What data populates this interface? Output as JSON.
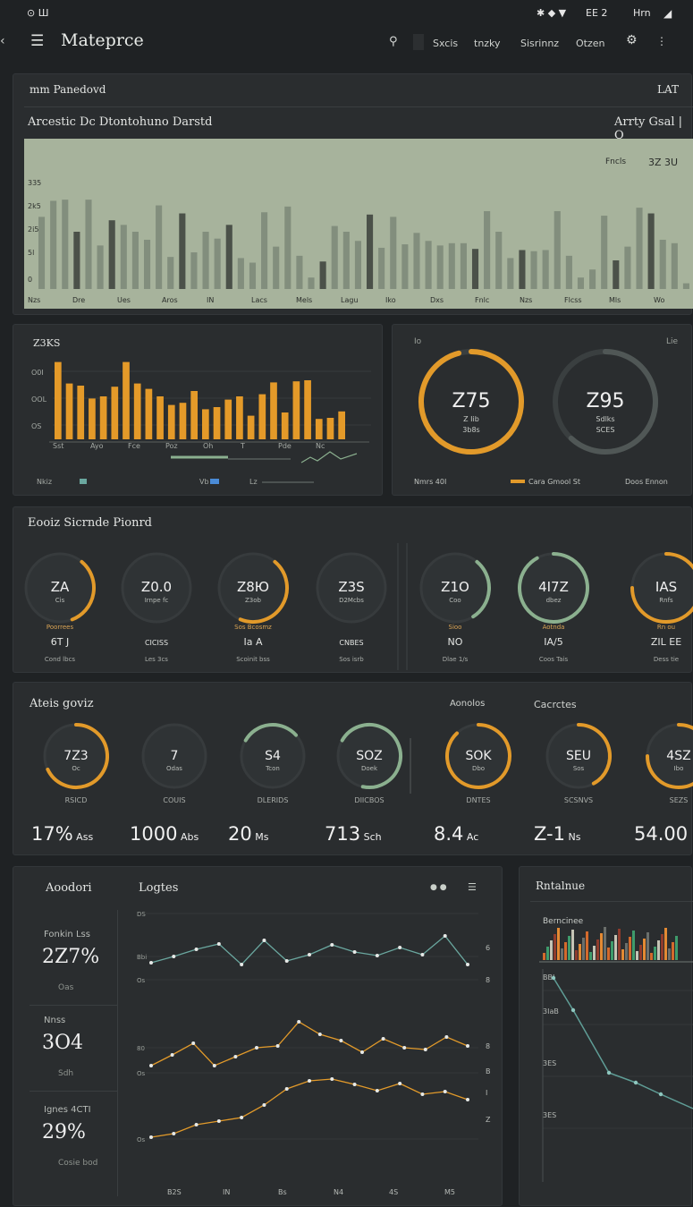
{
  "status": {
    "left": "⊙ Ш",
    "right": "ЕЕ 2",
    "time": "Hrn"
  },
  "appbar": {
    "title": "Mateprce",
    "nav": [
      "Sxcis",
      "tnzky",
      "Sisrinnz",
      "Otzen"
    ]
  },
  "panel1": {
    "header": "mm Panedovd",
    "header_right": "LAT",
    "title": "Arcestic Dc Dtontohuno Darstd",
    "title_right": "Arrty Gsal | O",
    "inner_label": "Fncls",
    "inner_value": "3Z 3U",
    "chart_data": {
      "type": "bar",
      "yticks": [
        "335",
        "2k5",
        "2i5",
        "5l",
        "0"
      ],
      "xticks": [
        "Nzs",
        "Dre",
        "Ues",
        "Aros",
        "IN",
        "Lacs",
        "Mels",
        "Lagu",
        "Iko",
        "Dxs",
        "Fnlc",
        "Nzs",
        "Flcss",
        "Mls",
        "Wo"
      ],
      "values": [
        63,
        77,
        78,
        50,
        78,
        38,
        60,
        56,
        50,
        43,
        73,
        28,
        66,
        32,
        50,
        44,
        56,
        27,
        23,
        67,
        37,
        72,
        29,
        10,
        24,
        55,
        50,
        42,
        65,
        36,
        63,
        39,
        49,
        42,
        38,
        40,
        40,
        35,
        68,
        50,
        27,
        34,
        33,
        34,
        68,
        29,
        10,
        17,
        64,
        25,
        37,
        71,
        66,
        43,
        40,
        5
      ],
      "dark": [
        3,
        6,
        12,
        16,
        24,
        28,
        37,
        41,
        49,
        52,
        58,
        62
      ]
    }
  },
  "panel2": {
    "title": "Z3KS",
    "yticks": [
      "O0I",
      "OOL",
      "OS"
    ],
    "xticks": [
      "Sst",
      "Ayo",
      "Fce",
      "Poz",
      "Oh",
      "T",
      "Pde",
      "Nc"
    ],
    "values": [
      72,
      52,
      50,
      38,
      40,
      49,
      72,
      52,
      47,
      40,
      32,
      34,
      45,
      28,
      30,
      37,
      40,
      22,
      42,
      53,
      25,
      54,
      55,
      19,
      20,
      26
    ],
    "legend": [
      "Nkiz",
      "Vb",
      "Lz"
    ]
  },
  "panel3": {
    "corner_left": "Io",
    "corner_right": "Lie",
    "gauges": [
      {
        "value": "Z75",
        "sub1": "Z Iib",
        "sub2": "3b8s",
        "pct": 0.96,
        "color": "#e29a2a"
      },
      {
        "value": "Z95",
        "sub1": "Sdlks",
        "sub2": "SCES",
        "pct": 0.62,
        "color": "#505756"
      }
    ],
    "legend": [
      "Nmrs 40I",
      "Cara Gmool St",
      "Doos Ennon"
    ]
  },
  "section1": {
    "title": "Eooiz Sicrnde Pionrd",
    "gauges": [
      {
        "value": "ZA",
        "sub": "Cis",
        "top": "Poorrees",
        "mid": "6T J",
        "bottom": "Cond lbcs",
        "pct": 0.33,
        "color": "#e29a2a"
      },
      {
        "value": "Z0.0",
        "sub": "Irnpe fc",
        "top": "",
        "mid": "CICISS",
        "bottom": "Les 3cs",
        "pct": 0,
        "color": "#e29a2a"
      },
      {
        "value": "Z8Ю",
        "sub": "Z3ob",
        "top": "Sos Bcosmz",
        "mid": "Ia A",
        "bottom": "Scoinit bss",
        "pct": 0.45,
        "color": "#e29a2a"
      },
      {
        "value": "Z3S",
        "sub": "D2Mcbs",
        "top": "",
        "mid": "CNBES",
        "bottom": "Sos isrb",
        "pct": 0,
        "color": "#e29a2a"
      },
      {
        "value": "Z1O",
        "sub": "Coo",
        "top": "Sioo",
        "mid": "NO",
        "bottom": "Dlae 1/s",
        "pct": 0.3,
        "color": "#8bb08f"
      },
      {
        "value": "4I7Z",
        "sub": "dbez",
        "top": "Aotnda",
        "mid": "IA/5",
        "bottom": "Coos Tais",
        "pct": 0.92,
        "color": "#8bb08f"
      },
      {
        "value": "IAS",
        "sub": "Rnfs",
        "top": "Rn ou",
        "mid": "ZIL EE",
        "bottom": "Dess tie",
        "pct": 0.75,
        "color": "#e29a2a"
      }
    ]
  },
  "section2": {
    "title": "Ateis goviz",
    "label_mid": "Aonolos",
    "label_right": "Cacrctes",
    "gauges": [
      {
        "value": "7Z3",
        "sub": "Oc",
        "cap": "RSICD",
        "stat": "17%",
        "unit": "Ass",
        "pct": 0.68,
        "color": "#e29a2a"
      },
      {
        "value": "7",
        "sub": "Odas",
        "cap": "COUIS",
        "stat": "1000",
        "unit": "Abs",
        "pct": 0,
        "color": "#e29a2a"
      },
      {
        "value": "S4",
        "sub": "Tcon",
        "cap": "DLERIDS",
        "stat": "20",
        "unit": "Ms",
        "pct": 0.3,
        "color": "#8bb08f"
      },
      {
        "value": "SOZ",
        "sub": "Doek",
        "cap": "DIICBOS",
        "stat": "713",
        "unit": "Sch",
        "pct": 0.7,
        "color": "#8bb08f"
      },
      {
        "value": "SOK",
        "sub": "Dbo",
        "cap": "DNTES",
        "stat": "8.4",
        "unit": "Ac",
        "pct": 0.88,
        "color": "#e29a2a"
      },
      {
        "value": "SEU",
        "sub": "Sos",
        "cap": "SCSNVS",
        "stat": "Z-1",
        "unit": "Ns",
        "pct": 0.42,
        "color": "#e29a2a"
      },
      {
        "value": "4SZ",
        "sub": "Ibo",
        "cap": "SEZS",
        "stat": "54.00",
        "unit": "",
        "pct": 0.75,
        "color": "#e29a2a"
      }
    ]
  },
  "panel4": {
    "left_title": "Aoodori",
    "right_title": "Logtes",
    "stats": [
      {
        "label": "Fonkin Lss",
        "value": "2Z7%",
        "note": "Oas"
      },
      {
        "label": "Nnss",
        "value": "3O4",
        "note": "Sdh"
      },
      {
        "label": "Ignes 4CTI",
        "value": "29%",
        "note": "Cosie bod"
      }
    ],
    "yticks_left": [
      "DS",
      "Bbi",
      "Os",
      "80",
      "Os",
      "Os"
    ],
    "yticks_right": [
      "6",
      "8",
      "8",
      "B",
      "I",
      "Z"
    ],
    "xticks": [
      "B2S",
      "IN",
      "Bs",
      "N4",
      "4S",
      "M5"
    ],
    "chart_data": {
      "type": "line",
      "series": [
        {
          "values": [
            1075,
            1068,
            1060,
            1054,
            1077,
            1050,
            1073,
            1066,
            1055,
            1063,
            1067,
            1058,
            1066,
            1045,
            1077
          ],
          "color": "#6aa79f"
        },
        {
          "values": [
            1190,
            1178,
            1165,
            1190,
            1180,
            1170,
            1168,
            1141,
            1155,
            1162,
            1175,
            1160,
            1170,
            1172,
            1158,
            1168
          ],
          "color": "#e29a2a"
        },
        {
          "values": [
            1270,
            1266,
            1256,
            1252,
            1248,
            1234,
            1216,
            1207,
            1205,
            1211,
            1218,
            1210,
            1222,
            1219,
            1228
          ],
          "color": "#e29a2a"
        }
      ]
    }
  },
  "panel5": {
    "title": "Rntalnue",
    "sub": "Berncinee",
    "yticks": [
      "BBI",
      "3IaB",
      "3ES",
      "3ES"
    ],
    "line": [
      1092,
      1128,
      1198,
      1209,
      1222
    ]
  }
}
